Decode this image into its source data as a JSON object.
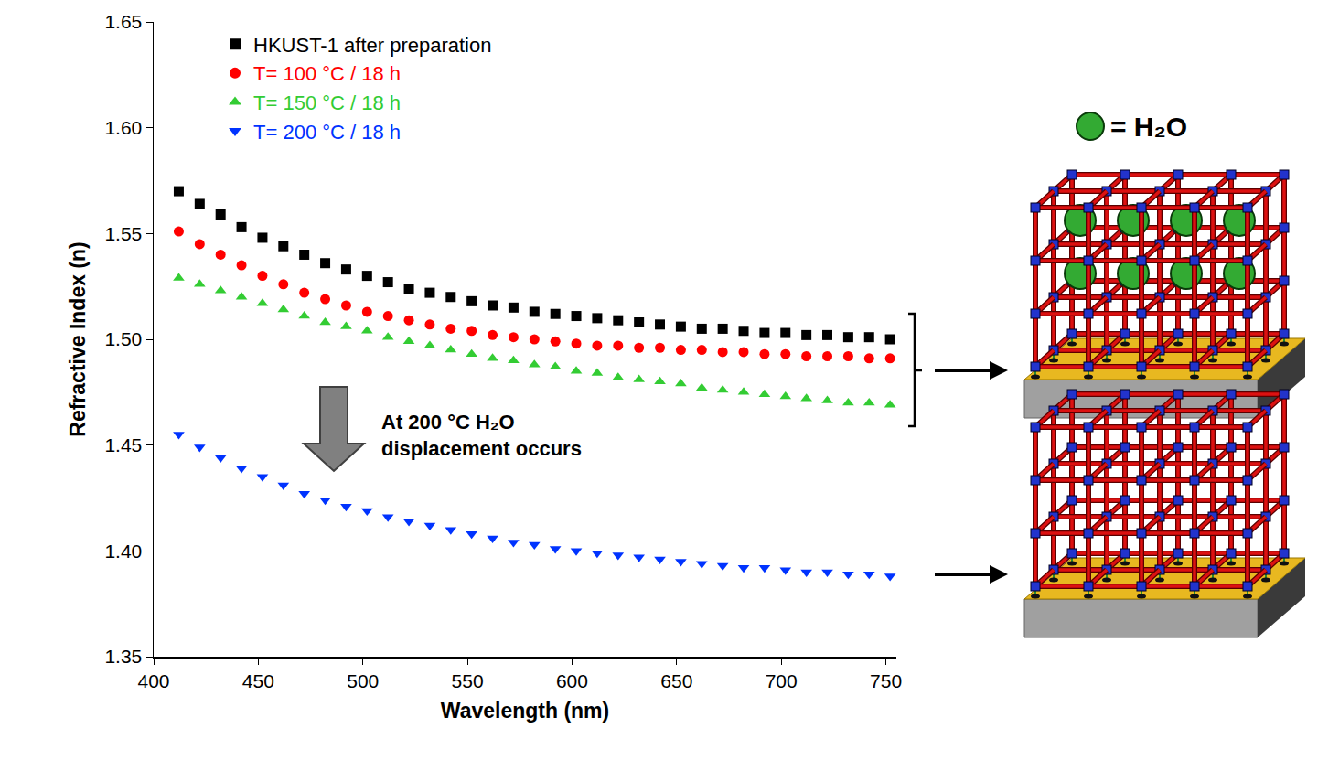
{
  "chart_data": {
    "type": "scatter",
    "x_label": "Wavelength (nm)",
    "y_label": "Refractive Index (n)",
    "x": [
      412,
      422,
      432,
      442,
      452,
      462,
      472,
      482,
      492,
      502,
      512,
      522,
      532,
      542,
      552,
      562,
      572,
      582,
      592,
      602,
      612,
      622,
      632,
      642,
      652,
      662,
      672,
      682,
      692,
      702,
      712,
      722,
      732,
      742,
      752
    ],
    "series": [
      {
        "name": "HKUST-1 after preparation",
        "color": "#000000",
        "marker": "square",
        "values": [
          1.57,
          1.564,
          1.559,
          1.553,
          1.548,
          1.544,
          1.54,
          1.536,
          1.533,
          1.53,
          1.527,
          1.524,
          1.522,
          1.52,
          1.518,
          1.516,
          1.515,
          1.513,
          1.512,
          1.511,
          1.51,
          1.509,
          1.508,
          1.507,
          1.506,
          1.505,
          1.505,
          1.504,
          1.503,
          1.503,
          1.502,
          1.502,
          1.501,
          1.501,
          1.5
        ]
      },
      {
        "name": "T= 100 °C / 18 h",
        "color": "#ff0000",
        "marker": "circle",
        "values": [
          1.551,
          1.545,
          1.54,
          1.535,
          1.53,
          1.526,
          1.522,
          1.519,
          1.516,
          1.513,
          1.511,
          1.509,
          1.507,
          1.505,
          1.504,
          1.502,
          1.501,
          1.5,
          1.499,
          1.498,
          1.497,
          1.497,
          1.496,
          1.496,
          1.495,
          1.495,
          1.494,
          1.494,
          1.493,
          1.493,
          1.492,
          1.492,
          1.492,
          1.491,
          1.491
        ]
      },
      {
        "name": "T= 150 °C / 18 h",
        "color": "#33cc33",
        "marker": "triangle-up",
        "values": [
          1.529,
          1.526,
          1.523,
          1.52,
          1.517,
          1.514,
          1.511,
          1.508,
          1.506,
          1.504,
          1.501,
          1.499,
          1.497,
          1.495,
          1.493,
          1.491,
          1.49,
          1.488,
          1.487,
          1.485,
          1.484,
          1.482,
          1.481,
          1.48,
          1.479,
          1.477,
          1.476,
          1.475,
          1.474,
          1.473,
          1.472,
          1.471,
          1.47,
          1.47,
          1.469
        ]
      },
      {
        "name": "T= 200 °C / 18 h",
        "color": "#0033ff",
        "marker": "triangle-down",
        "values": [
          1.455,
          1.449,
          1.444,
          1.439,
          1.435,
          1.431,
          1.427,
          1.424,
          1.421,
          1.419,
          1.416,
          1.414,
          1.412,
          1.41,
          1.408,
          1.406,
          1.404,
          1.403,
          1.401,
          1.4,
          1.399,
          1.398,
          1.397,
          1.396,
          1.395,
          1.394,
          1.393,
          1.392,
          1.392,
          1.391,
          1.39,
          1.39,
          1.389,
          1.389,
          1.388
        ]
      }
    ],
    "xlim": [
      400,
      755
    ],
    "xticks": [
      400,
      450,
      500,
      550,
      600,
      650,
      700,
      750
    ],
    "ylim": [
      1.35,
      1.65
    ],
    "yticks": [
      1.35,
      {
        "value": 1.4,
        "label": "1.40"
      },
      1.45,
      {
        "value": 1.5,
        "label": "1.50"
      },
      1.55,
      {
        "value": 1.6,
        "label": "1.60"
      },
      1.65
    ],
    "grid": false,
    "legend": "top left",
    "annotations": [
      {
        "text": [
          "At 200 °C H₂O",
          "displacement occurs"
        ]
      }
    ]
  },
  "diagram": {
    "key_label": "= H₂O"
  }
}
